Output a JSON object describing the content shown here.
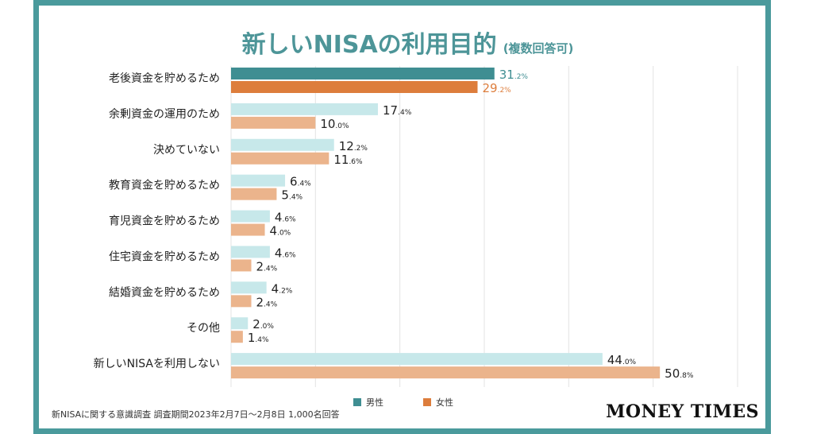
{
  "title": "新しいNISAの利用目的",
  "title_note": "(複数回答可)",
  "footnote": "新NISAに関する意識調査  調査期間2023年2月7日〜2月8日  1,000名回答",
  "brand": "MONEY TIMES",
  "colors": {
    "male_top": "#3f8e92",
    "female_top": "#dd7d3c",
    "male": "#c7e8ea",
    "female": "#ebb48c",
    "label_male_top": "#3f8e92",
    "label_female_top": "#dd7d3c",
    "grid": "#e3e3e3"
  },
  "chart_data": {
    "type": "bar",
    "orientation": "horizontal",
    "categories": [
      "老後資金を貯めるため",
      "余剰資金の運用のため",
      "決めていない",
      "教育資金を貯めるため",
      "育児資金を貯めるため",
      "住宅資金を貯めるため",
      "結婚資金を貯めるため",
      "その他",
      "新しいNISAを利用しない"
    ],
    "series": [
      {
        "name": "男性",
        "values": [
          31.2,
          17.4,
          12.2,
          6.4,
          4.6,
          4.6,
          4.2,
          2.0,
          44.0
        ]
      },
      {
        "name": "女性",
        "values": [
          29.2,
          10.0,
          11.6,
          5.4,
          4.0,
          2.4,
          2.4,
          1.4,
          50.8
        ]
      }
    ],
    "value_labels": {
      "男性": [
        [
          "31",
          ".2%"
        ],
        [
          "17",
          ".4%"
        ],
        [
          "12",
          ".2%"
        ],
        [
          "6",
          ".4%"
        ],
        [
          "4",
          ".6%"
        ],
        [
          "4",
          ".6%"
        ],
        [
          "4",
          ".2%"
        ],
        [
          "2",
          ".0%"
        ],
        [
          "44",
          ".0%"
        ]
      ],
      "女性": [
        [
          "29",
          ".2%"
        ],
        [
          "10",
          ".0%"
        ],
        [
          "11",
          ".6%"
        ],
        [
          "5",
          ".4%"
        ],
        [
          "4",
          ".0%"
        ],
        [
          "2",
          ".4%"
        ],
        [
          "2",
          ".4%"
        ],
        [
          "1",
          ".4%"
        ],
        [
          "50",
          ".8%"
        ]
      ]
    },
    "xlim": [
      0,
      60
    ],
    "grid": true,
    "legend_position": "bottom-center"
  }
}
